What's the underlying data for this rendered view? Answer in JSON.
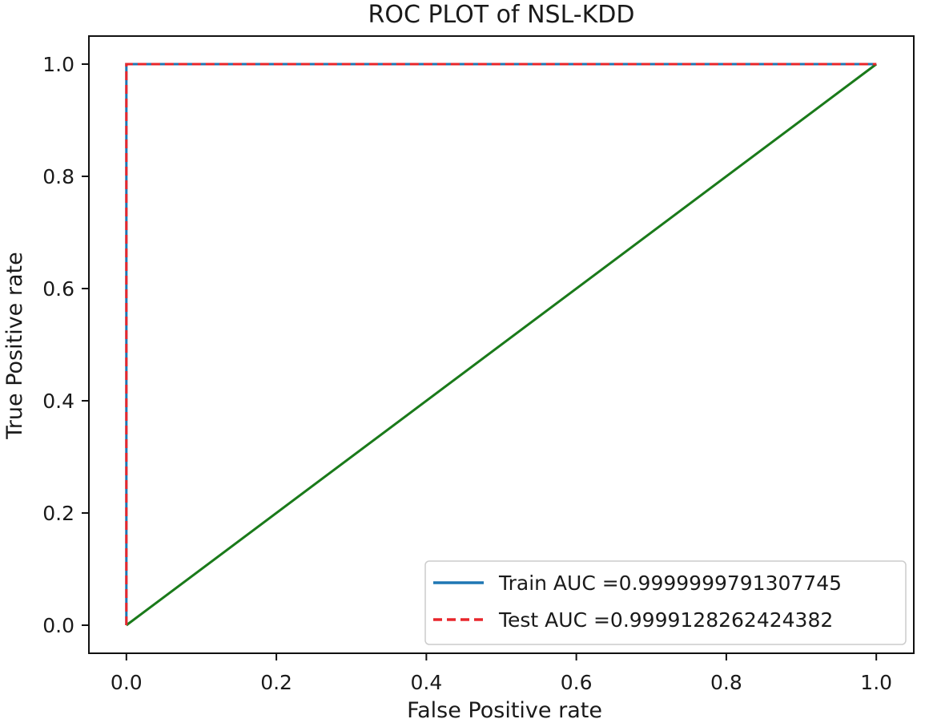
{
  "chart_data": {
    "type": "line",
    "title": "ROC PLOT of NSL-KDD",
    "xlabel": "False Positive rate",
    "ylabel": "True Positive rate",
    "xlim": [
      -0.05,
      1.05
    ],
    "ylim": [
      -0.05,
      1.05
    ],
    "xticks": [
      "0.0",
      "0.2",
      "0.4",
      "0.6",
      "0.8",
      "1.0"
    ],
    "yticks": [
      "0.0",
      "0.2",
      "0.4",
      "0.6",
      "0.8",
      "1.0"
    ],
    "grid": false,
    "legend_position": "lower-right",
    "series": [
      {
        "name": "Train AUC =0.9999999791307745",
        "color": "#1f77b4",
        "style": "solid",
        "x": [
          0.0,
          0.0,
          1.0
        ],
        "y": [
          0.0,
          1.0,
          1.0
        ]
      },
      {
        "name": "Test AUC =0.9999128262424382",
        "color": "#e8262b",
        "style": "dashed",
        "x": [
          0.0,
          0.0,
          1.0
        ],
        "y": [
          0.0,
          1.0,
          1.0
        ]
      },
      {
        "name": "",
        "color": "#1a7a1a",
        "style": "solid",
        "x": [
          0.0,
          1.0
        ],
        "y": [
          0.0,
          1.0
        ]
      }
    ]
  }
}
